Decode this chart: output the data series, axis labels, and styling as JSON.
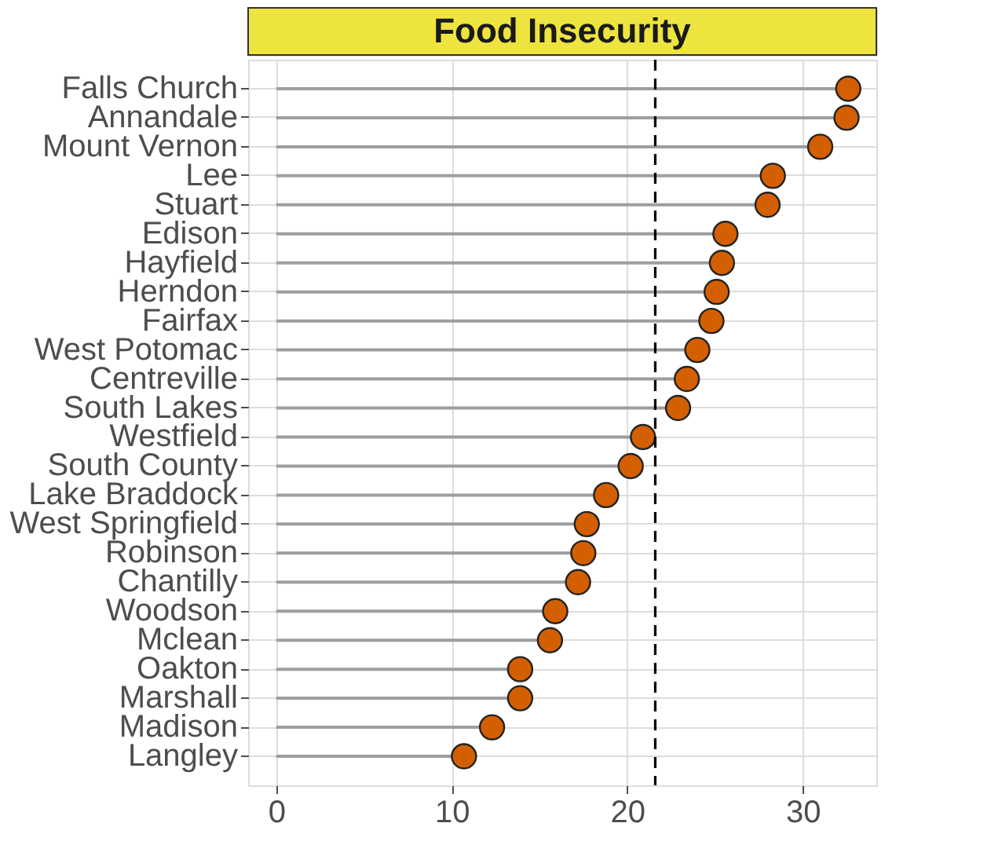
{
  "chart_data": {
    "type": "lollipop",
    "orientation": "horizontal",
    "title": "Food Insecurity",
    "categories": [
      "Falls Church",
      "Annandale",
      "Mount Vernon",
      "Lee",
      "Stuart",
      "Edison",
      "Hayfield",
      "Herndon",
      "Fairfax",
      "West Potomac",
      "Centreville",
      "South Lakes",
      "Westfield",
      "South County",
      "Lake Braddock",
      "West Springfield",
      "Robinson",
      "Chantilly",
      "Woodson",
      "Mclean",
      "Oakton",
      "Marshall",
      "Madison",
      "Langley"
    ],
    "values": [
      32.6,
      32.5,
      31.0,
      28.3,
      28.0,
      25.6,
      25.4,
      25.1,
      24.8,
      24.0,
      23.4,
      22.9,
      20.9,
      20.2,
      18.8,
      17.7,
      17.5,
      17.2,
      15.9,
      15.6,
      13.9,
      13.9,
      12.3,
      10.7
    ],
    "color": "#d35f00",
    "marker": "circle",
    "xlim": [
      -1.6,
      34.2
    ],
    "xticks": [
      0,
      10,
      20,
      30
    ],
    "grid": true,
    "ref_lines": [
      {
        "axis": "x",
        "value": 21.6,
        "line_style": "dashed",
        "color": "#000000"
      }
    ]
  }
}
